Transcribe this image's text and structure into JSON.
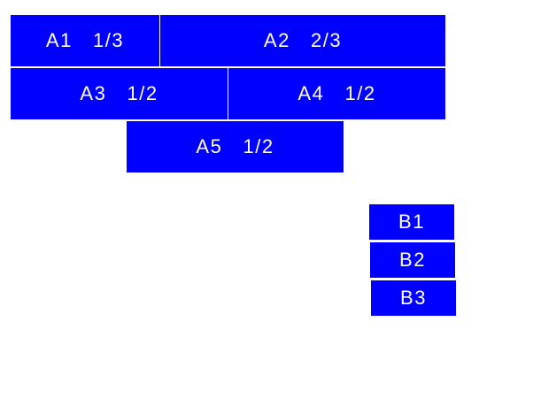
{
  "colors": {
    "box": "#0000ff",
    "text": "#ffffff"
  },
  "group_a": [
    {
      "label": "A1  1/3"
    },
    {
      "label": "A2  2/3"
    },
    {
      "label": "A3  1/2"
    },
    {
      "label": "A4  1/2"
    },
    {
      "label": "A5  1/2"
    }
  ],
  "group_b": [
    {
      "label": "B1"
    },
    {
      "label": "B2"
    },
    {
      "label": "B3"
    }
  ]
}
